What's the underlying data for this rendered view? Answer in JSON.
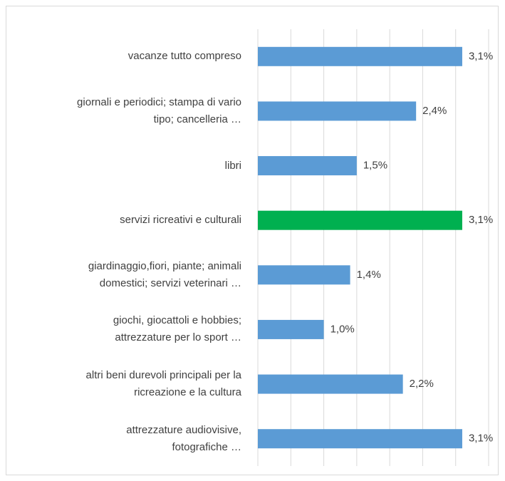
{
  "chart_data": {
    "type": "bar",
    "orientation": "horizontal",
    "categories": [
      "vacanze tutto compreso",
      "giornali e periodici; stampa di vario\ntipo; cancelleria …",
      "libri",
      "servizi ricreativi e culturali",
      "giardinaggio,fiori, piante; animali\ndomestici; servizi veterinari …",
      "giochi, giocattoli e hobbies;\nattrezzature per lo sport …",
      "altri beni durevoli principali per la\nricreazione e la cultura",
      "attrezzature audiovisive,\nfotografiche …"
    ],
    "values": [
      3.1,
      2.4,
      1.5,
      3.1,
      1.4,
      1.0,
      2.2,
      3.1
    ],
    "value_labels": [
      "3,1%",
      "2,4%",
      "1,5%",
      "3,1%",
      "1,4%",
      "1,0%",
      "2,2%",
      "3,1%"
    ],
    "colors": [
      "#5b9bd5",
      "#5b9bd5",
      "#5b9bd5",
      "#00b050",
      "#5b9bd5",
      "#5b9bd5",
      "#5b9bd5",
      "#5b9bd5"
    ],
    "xlim": [
      0,
      3.5
    ],
    "xticks": [
      0,
      0.5,
      1,
      1.5,
      2,
      2.5,
      3,
      3.5
    ],
    "grid": true
  }
}
